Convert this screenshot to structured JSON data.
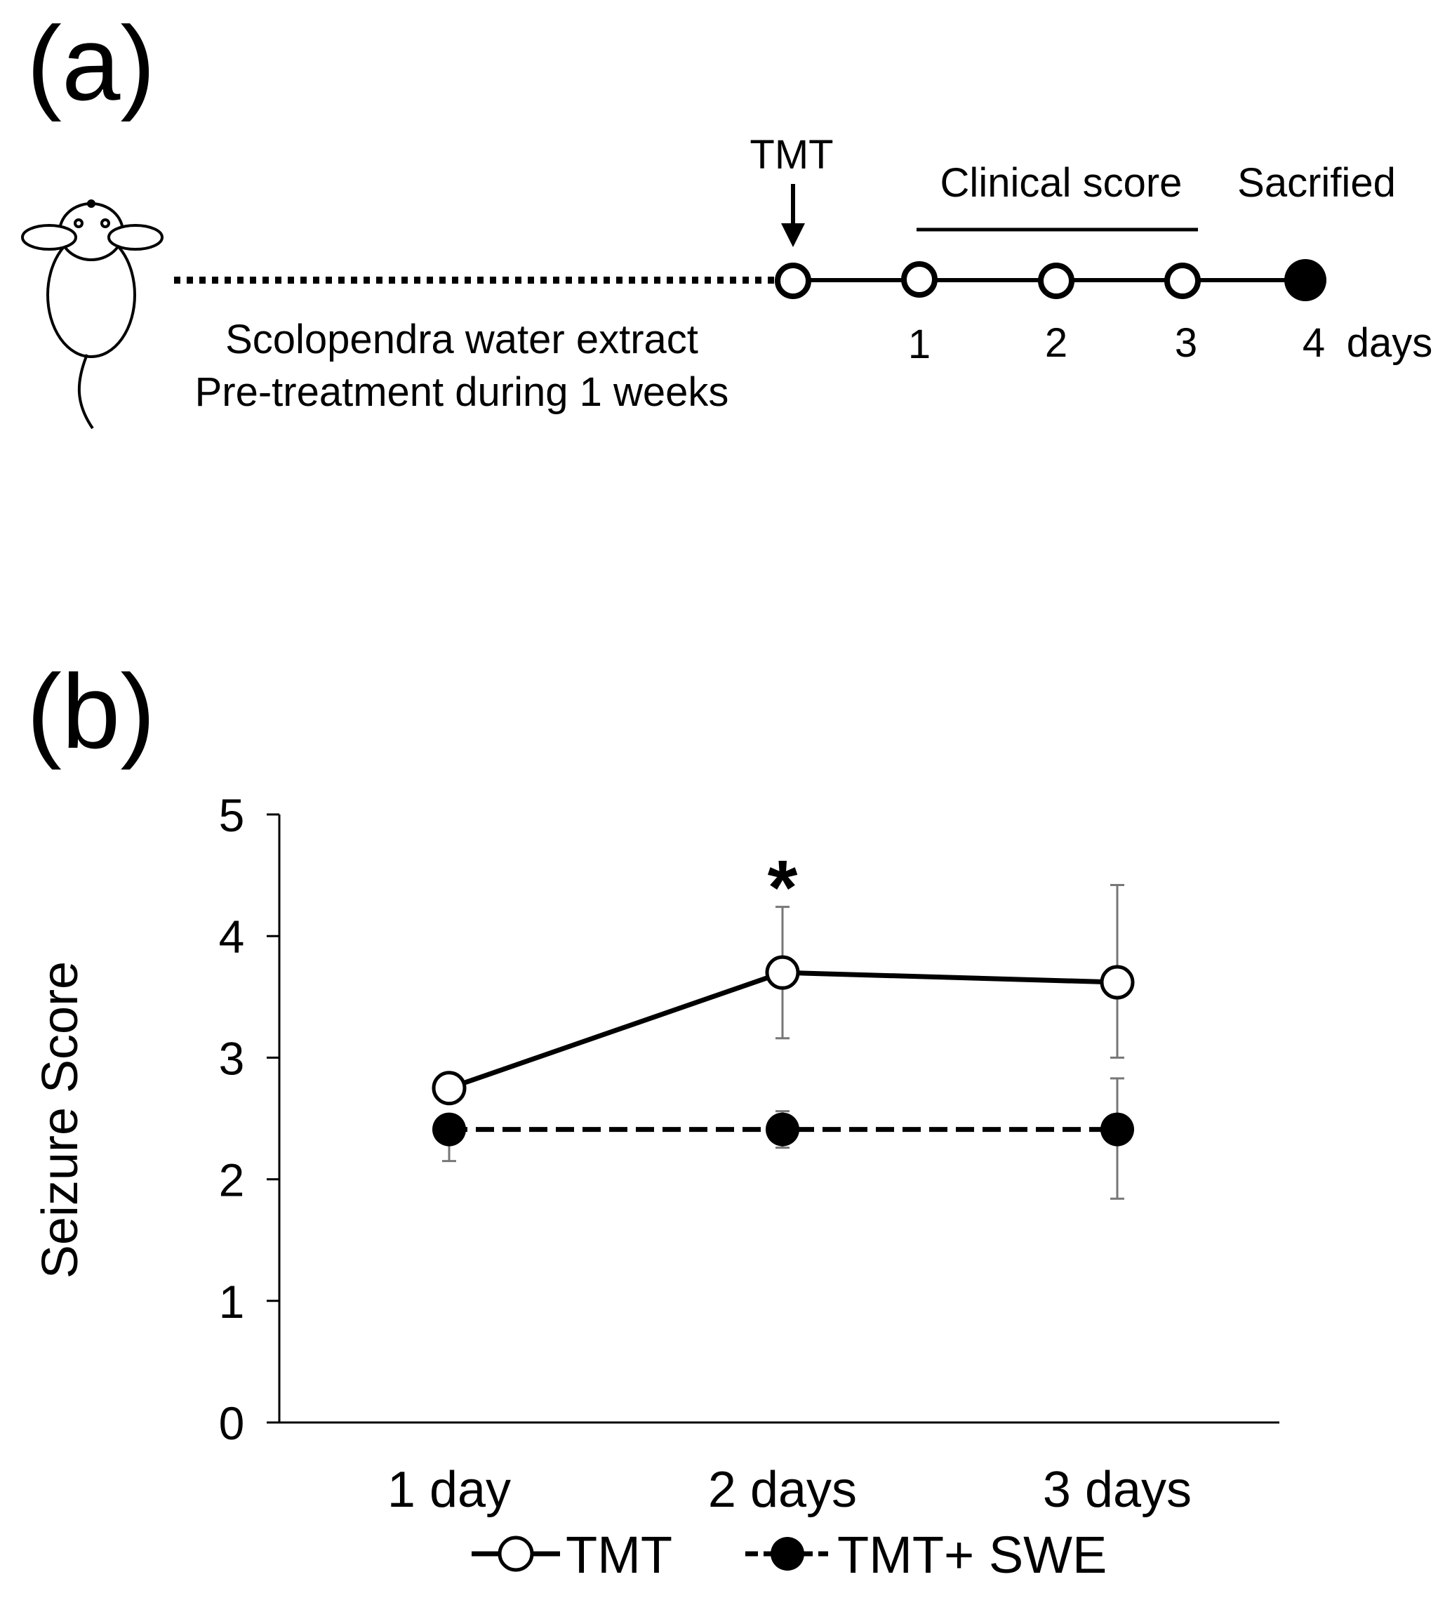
{
  "panel_a": {
    "label": "(a)",
    "tmt_label": "TMT",
    "clinical_label": "Clinical score",
    "sacrificed_label": "Sacrified",
    "pretreat_line1": "Scolopendra water extract",
    "pretreat_line2": "Pre-treatment during 1 weeks",
    "day_labels": [
      "1",
      "2",
      "3",
      "4"
    ],
    "days_unit": "days"
  },
  "panel_b": {
    "label": "(b)",
    "significance_mark": "*"
  },
  "chart_data": {
    "type": "line",
    "title": "",
    "xlabel": "",
    "ylabel": "Seizure Score",
    "categories": [
      "1 day",
      "2 days",
      "3 days"
    ],
    "ylim": [
      0,
      5
    ],
    "yticks": [
      0,
      1,
      2,
      3,
      4,
      5
    ],
    "grid": false,
    "series": [
      {
        "name": "TMT",
        "marker": "open-circle",
        "line": "solid",
        "values": [
          2.75,
          3.7,
          3.62
        ],
        "error": [
          [
            0,
            0
          ],
          [
            0.54,
            0.54
          ],
          [
            0.62,
            0.8
          ]
        ]
      },
      {
        "name": "TMT+ SWE",
        "marker": "filled-circle",
        "line": "dashed",
        "values": [
          2.41,
          2.41,
          2.41
        ],
        "error": [
          [
            0.26,
            0
          ],
          [
            0.15,
            0.15
          ],
          [
            0.57,
            0.42
          ]
        ]
      }
    ],
    "annotations": [
      {
        "text": "*",
        "category": "2 days"
      }
    ],
    "legend_position": "bottom"
  }
}
